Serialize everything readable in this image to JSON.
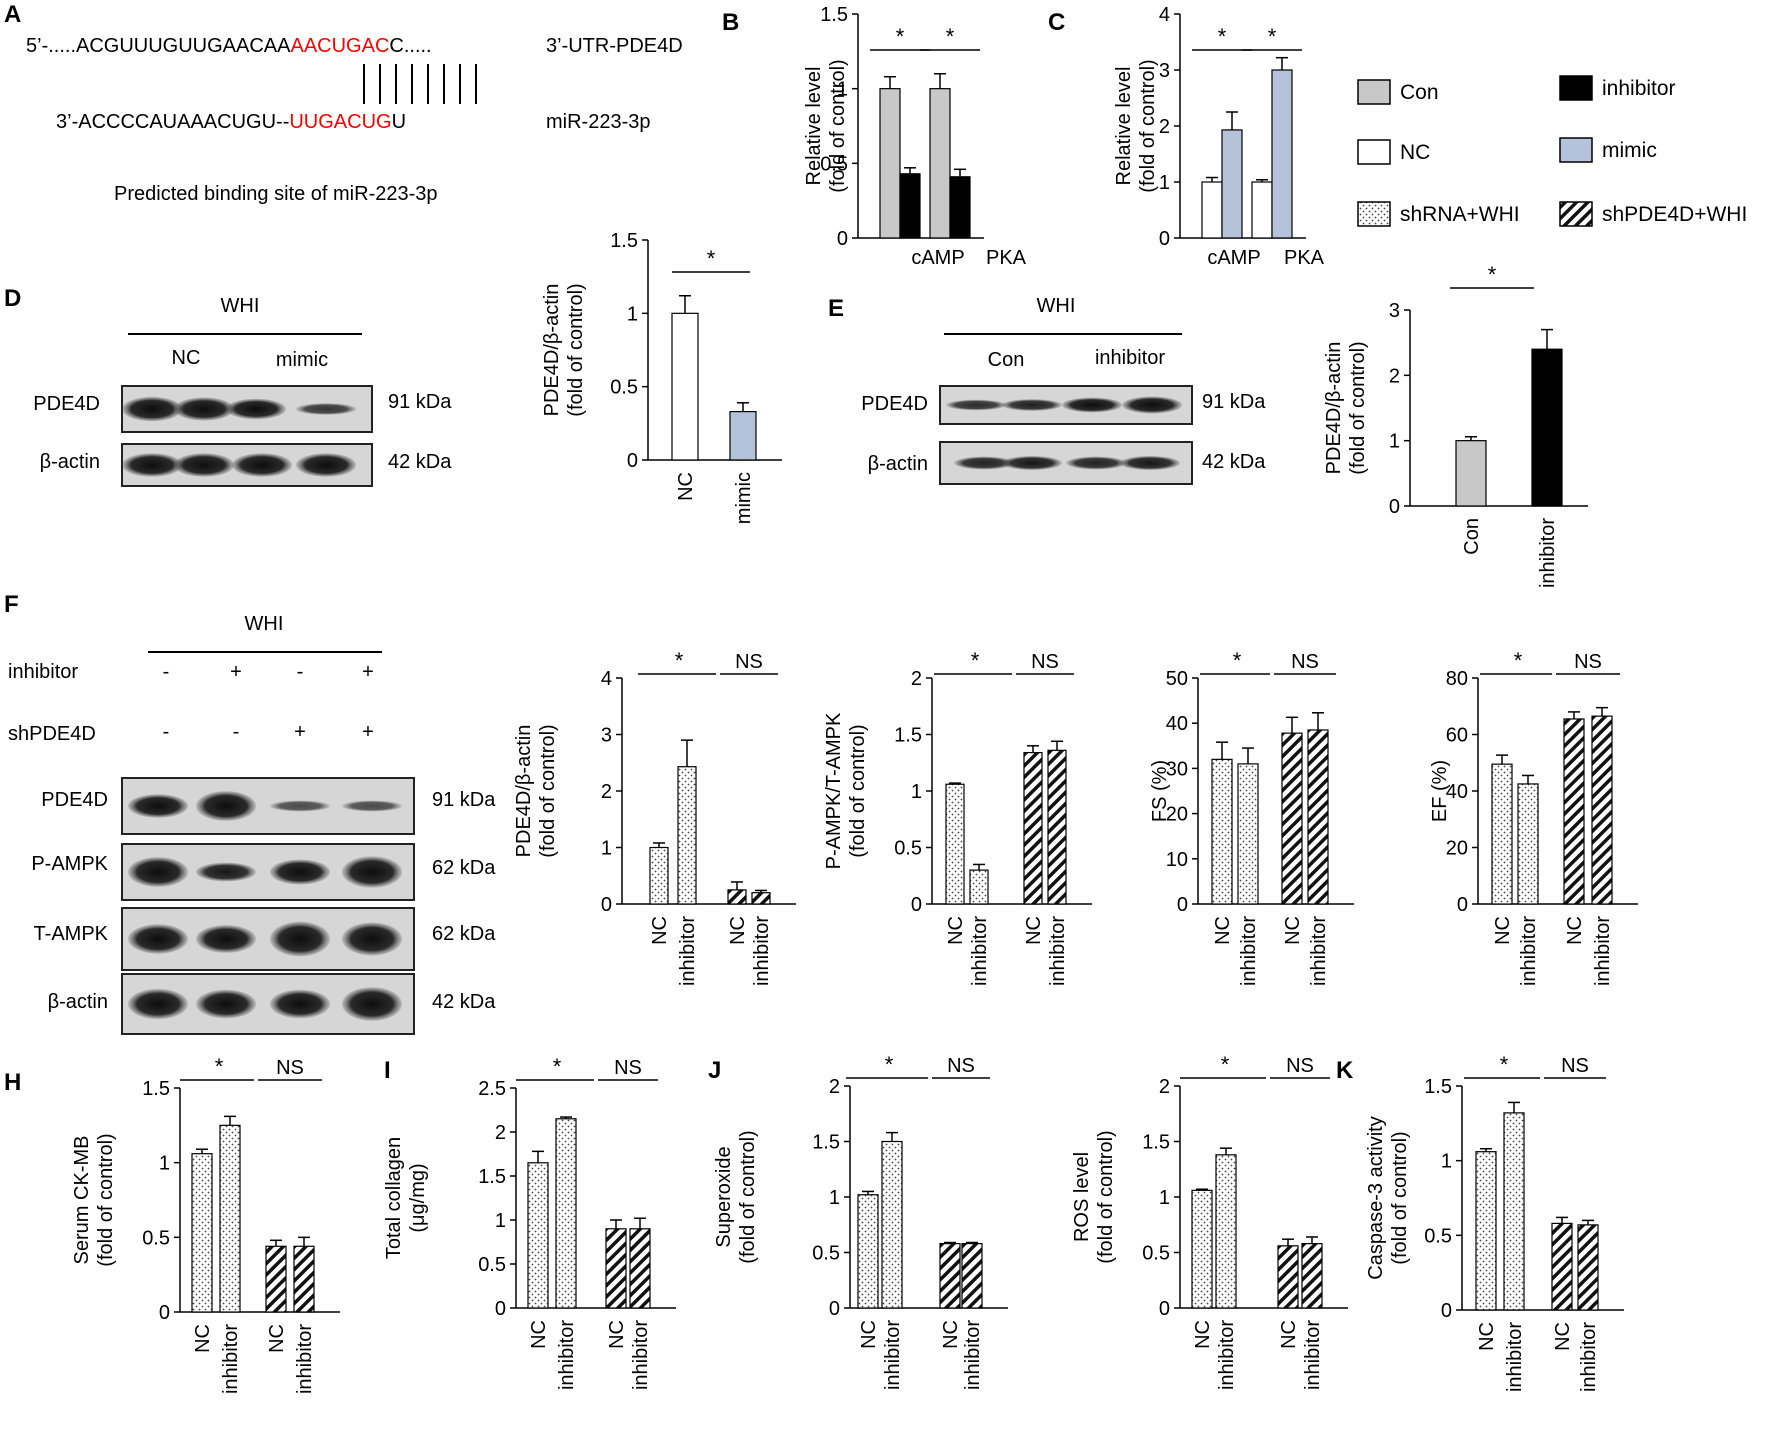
{
  "colors": {
    "gray": "#c8c8c8",
    "white": "#ffffff",
    "black": "#000000",
    "blue": "#b4c3d9",
    "red": "#ff0000",
    "dots": "#444444",
    "hatch": "#111111"
  },
  "panel_letters": {
    "A": "A",
    "B": "B",
    "C": "C",
    "D": "D",
    "E": "E",
    "F": "F",
    "H": "H",
    "I": "I",
    "J": "J",
    "K": "K"
  },
  "sequence": {
    "utr_prefix": "5’-.....ACGUUUGUUGAACAA",
    "utr_red": "AACUGAC",
    "utr_suffix": "C.....",
    "utr_label": "3’-UTR-PDE4D",
    "mir_prefix": "3’-ACCCCAUAAACUGU--",
    "mir_red": "UUGACUG",
    "mir_suffix": "U",
    "mir_label": "miR-223-3p",
    "caption": "Predicted binding site of miR-223-3p"
  },
  "legend": [
    {
      "label": "Con",
      "fill": "gray"
    },
    {
      "label": "inhibitor",
      "fill": "black"
    },
    {
      "label": "NC",
      "fill": "white"
    },
    {
      "label": "mimic",
      "fill": "blue"
    },
    {
      "label": "shRNA+WHI",
      "fill": "dots"
    },
    {
      "label": "shPDE4D+WHI",
      "fill": "hatch"
    }
  ],
  "blots": {
    "D": {
      "group": "WHI",
      "cols": [
        "NC",
        "mimic"
      ],
      "rows": [
        {
          "name": "PDE4D",
          "size": "91 kDa"
        },
        {
          "name": "β-actin",
          "size": "42 kDa"
        }
      ]
    },
    "E": {
      "group": "WHI",
      "cols": [
        "Con",
        "inhibitor"
      ],
      "rows": [
        {
          "name": "PDE4D",
          "size": "91 kDa"
        },
        {
          "name": "β-actin",
          "size": "42 kDa"
        }
      ]
    },
    "F": {
      "group": "WHI",
      "conditions": [
        {
          "name": "inhibitor",
          "marks": [
            "-",
            "+",
            "-",
            "+"
          ]
        },
        {
          "name": "shPDE4D",
          "marks": [
            "-",
            "-",
            "+",
            "+"
          ]
        }
      ],
      "rows": [
        {
          "name": "PDE4D",
          "size": "91 kDa"
        },
        {
          "name": "P-AMPK",
          "size": "62 kDa"
        },
        {
          "name": "T-AMPK",
          "size": "62 kDa"
        },
        {
          "name": "β-actin",
          "size": "42 kDa"
        }
      ]
    }
  },
  "chart_data": [
    {
      "panel": "B",
      "type": "bar",
      "ylabel": [
        "Relative level",
        "(fold of control)"
      ],
      "ylim": [
        0,
        1.5
      ],
      "yticks": [
        "0",
        "0.5",
        "1",
        "1.5"
      ],
      "categories": [
        "cAMP",
        "PKA"
      ],
      "series": [
        {
          "name": "Con",
          "fill": "gray",
          "values": [
            1.0,
            1.0
          ],
          "errors": [
            0.08,
            0.1
          ]
        },
        {
          "name": "inhibitor",
          "fill": "black",
          "values": [
            0.43,
            0.41
          ],
          "errors": [
            0.04,
            0.05
          ]
        }
      ],
      "sig": [
        "*",
        "*"
      ]
    },
    {
      "panel": "C",
      "type": "bar",
      "ylabel": [
        "Relative level",
        "(fold of control)"
      ],
      "ylim": [
        0,
        4
      ],
      "yticks": [
        "0",
        "1",
        "2",
        "3",
        "4"
      ],
      "categories": [
        "cAMP",
        "PKA"
      ],
      "series": [
        {
          "name": "NC",
          "fill": "white",
          "values": [
            1.0,
            1.0
          ],
          "errors": [
            0.08,
            0.04
          ]
        },
        {
          "name": "mimic",
          "fill": "blue",
          "values": [
            1.93,
            3.0
          ],
          "errors": [
            0.32,
            0.22
          ]
        }
      ],
      "sig": [
        "*",
        "*"
      ]
    },
    {
      "panel": "D",
      "type": "bar",
      "ylabel": [
        "PDE4D/β-actin",
        "(fold of control)"
      ],
      "ylim": [
        0,
        1.5
      ],
      "yticks": [
        "0",
        "0.5",
        "1",
        "1.5"
      ],
      "categories": [
        "NC",
        "mimic"
      ],
      "fills": [
        "white",
        "blue"
      ],
      "values": [
        1.0,
        0.33
      ],
      "errors": [
        0.12,
        0.06
      ],
      "sig": [
        "*"
      ]
    },
    {
      "panel": "E",
      "type": "bar",
      "ylabel": [
        "PDE4D/β-actin",
        "(fold of control)"
      ],
      "ylim": [
        0,
        3
      ],
      "yticks": [
        "0",
        "1",
        "2",
        "3"
      ],
      "categories": [
        "Con",
        "inhibitor"
      ],
      "fills": [
        "gray",
        "black"
      ],
      "values": [
        1.0,
        2.4
      ],
      "errors": [
        0.06,
        0.3
      ],
      "sig": [
        "*"
      ]
    },
    {
      "panel": "F1",
      "type": "bar",
      "ylabel": [
        "PDE4D/β-actin",
        "(fold of control)"
      ],
      "ylim": [
        0,
        4
      ],
      "yticks": [
        "0",
        "1",
        "2",
        "3",
        "4"
      ],
      "categories": [
        "NC",
        "inhibitor",
        "NC",
        "inhibitor"
      ],
      "fills": [
        "dots",
        "dots",
        "hatch",
        "hatch"
      ],
      "values": [
        1.0,
        2.43,
        0.25,
        0.2
      ],
      "errors": [
        0.08,
        0.47,
        0.14,
        0.04
      ],
      "sig": [
        "*",
        "NS"
      ]
    },
    {
      "panel": "F2",
      "type": "bar",
      "ylabel": [
        "P-AMPK/T-AMPK",
        "(fold of control)"
      ],
      "ylim": [
        0,
        2
      ],
      "yticks": [
        "0",
        "0.5",
        "1",
        "1.5",
        "2"
      ],
      "categories": [
        "NC",
        "inhibitor",
        "NC",
        "inhibitor"
      ],
      "fills": [
        "dots",
        "dots",
        "hatch",
        "hatch"
      ],
      "values": [
        1.06,
        0.3,
        1.34,
        1.36
      ],
      "errors": [
        0.01,
        0.05,
        0.06,
        0.08
      ],
      "sig": [
        "*",
        "NS"
      ]
    },
    {
      "panel": "F3",
      "type": "bar",
      "ylabel": [
        "FS (%)"
      ],
      "ylim": [
        0,
        50
      ],
      "yticks": [
        "0",
        "10",
        "20",
        "30",
        "40",
        "50"
      ],
      "categories": [
        "NC",
        "inhibitor",
        "NC",
        "inhibitor"
      ],
      "fills": [
        "dots",
        "dots",
        "hatch",
        "hatch"
      ],
      "values": [
        32,
        31,
        37.8,
        38.5
      ],
      "errors": [
        3.8,
        3.5,
        3.5,
        3.8
      ],
      "sig": [
        "*",
        "NS"
      ]
    },
    {
      "panel": "F4",
      "type": "bar",
      "ylabel": [
        "EF (%)"
      ],
      "ylim": [
        0,
        80
      ],
      "yticks": [
        "0",
        "20",
        "40",
        "60",
        "80"
      ],
      "categories": [
        "NC",
        "inhibitor",
        "NC",
        "inhibitor"
      ],
      "fills": [
        "dots",
        "dots",
        "hatch",
        "hatch"
      ],
      "values": [
        49.5,
        42.5,
        65.5,
        66.5
      ],
      "errors": [
        3.2,
        3.0,
        2.5,
        3.0
      ],
      "sig": [
        "*",
        "NS"
      ]
    },
    {
      "panel": "H",
      "type": "bar",
      "ylabel": [
        "Serum CK-MB",
        "(fold of control)"
      ],
      "ylim": [
        0,
        1.5
      ],
      "yticks": [
        "0",
        "0.5",
        "1",
        "1.5"
      ],
      "categories": [
        "NC",
        "inhibitor",
        "NC",
        "inhibitor"
      ],
      "fills": [
        "dots",
        "dots",
        "hatch",
        "hatch"
      ],
      "values": [
        1.06,
        1.25,
        0.44,
        0.44
      ],
      "errors": [
        0.03,
        0.06,
        0.04,
        0.06
      ],
      "sig": [
        "*",
        "NS"
      ]
    },
    {
      "panel": "I",
      "type": "bar",
      "ylabel": [
        "Total collagen",
        "(μg/mg)"
      ],
      "ylim": [
        0,
        2.5
      ],
      "yticks": [
        "0",
        "0.5",
        "1",
        "1.5",
        "2",
        "2.5"
      ],
      "categories": [
        "NC",
        "inhibitor",
        "NC",
        "inhibitor"
      ],
      "fills": [
        "dots",
        "dots",
        "hatch",
        "hatch"
      ],
      "values": [
        1.65,
        2.15,
        0.9,
        0.9
      ],
      "errors": [
        0.13,
        0.02,
        0.1,
        0.12
      ],
      "sig": [
        "*",
        "NS"
      ]
    },
    {
      "panel": "J1",
      "type": "bar",
      "ylabel": [
        "Superoxide",
        "(fold of control)"
      ],
      "ylim": [
        0,
        2
      ],
      "yticks": [
        "0",
        "0.5",
        "1",
        "1.5",
        "2"
      ],
      "categories": [
        "NC",
        "inhibitor",
        "NC",
        "inhibitor"
      ],
      "fills": [
        "dots",
        "dots",
        "hatch",
        "hatch"
      ],
      "values": [
        1.02,
        1.5,
        0.58,
        0.58
      ],
      "errors": [
        0.03,
        0.08,
        0.01,
        0.01
      ],
      "sig": [
        "*",
        "NS"
      ]
    },
    {
      "panel": "J2",
      "type": "bar",
      "ylabel": [
        "ROS level",
        "(fold of control)"
      ],
      "ylim": [
        0,
        2
      ],
      "yticks": [
        "0",
        "0.5",
        "1",
        "1.5",
        "2"
      ],
      "categories": [
        "NC",
        "inhibitor",
        "NC",
        "inhibitor"
      ],
      "fills": [
        "dots",
        "dots",
        "hatch",
        "hatch"
      ],
      "values": [
        1.06,
        1.38,
        0.56,
        0.58
      ],
      "errors": [
        0.01,
        0.06,
        0.06,
        0.06
      ],
      "sig": [
        "*",
        "NS"
      ]
    },
    {
      "panel": "K",
      "type": "bar",
      "ylabel": [
        "Caspase-3 activity",
        "(fold of control)"
      ],
      "ylim": [
        0,
        1.5
      ],
      "yticks": [
        "0",
        "0.5",
        "1",
        "1.5"
      ],
      "categories": [
        "NC",
        "inhibitor",
        "NC",
        "inhibitor"
      ],
      "fills": [
        "dots",
        "dots",
        "hatch",
        "hatch"
      ],
      "values": [
        1.06,
        1.32,
        0.58,
        0.57
      ],
      "errors": [
        0.02,
        0.07,
        0.04,
        0.03
      ],
      "sig": [
        "*",
        "NS"
      ]
    }
  ]
}
